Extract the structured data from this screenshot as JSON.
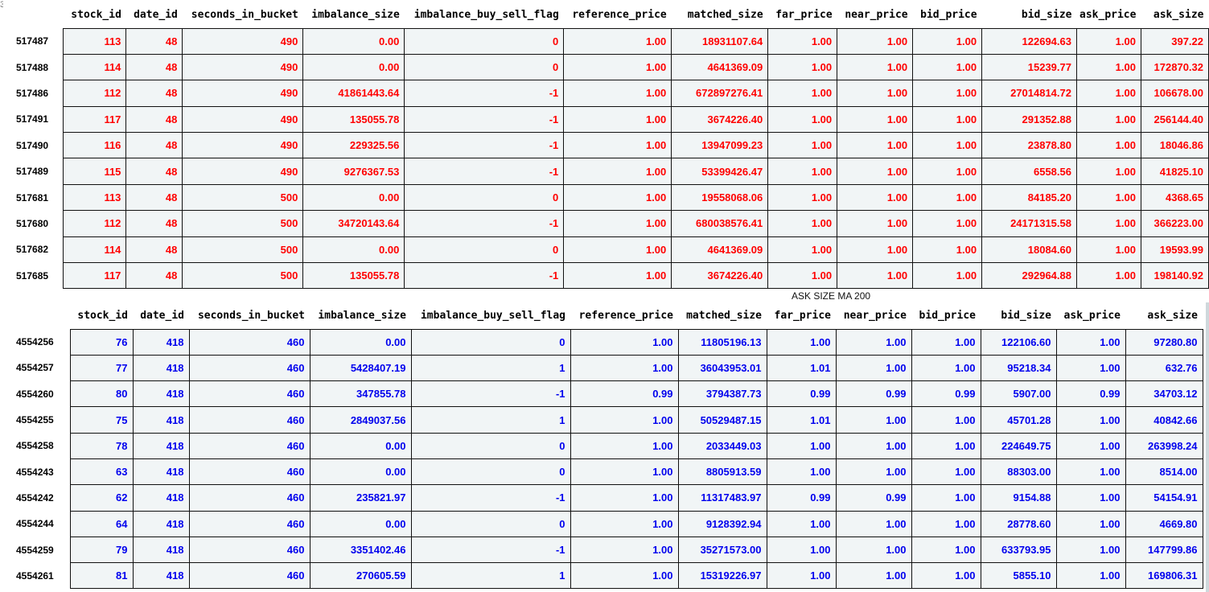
{
  "corner_mark": "3",
  "table1": {
    "columns": [
      "stock_id",
      "date_id",
      "seconds_in_bucket",
      "imbalance_size",
      "imbalance_buy_sell_flag",
      "reference_price",
      "matched_size",
      "far_price",
      "near_price",
      "bid_price",
      "bid_size",
      "ask_price",
      "ask_size"
    ],
    "rows": [
      {
        "index": "517487",
        "cells": [
          "113",
          "48",
          "490",
          "0.00",
          "0",
          "1.00",
          "18931107.64",
          "1.00",
          "1.00",
          "1.00",
          "122694.63",
          "1.00",
          "397.22"
        ]
      },
      {
        "index": "517488",
        "cells": [
          "114",
          "48",
          "490",
          "0.00",
          "0",
          "1.00",
          "4641369.09",
          "1.00",
          "1.00",
          "1.00",
          "15239.77",
          "1.00",
          "172870.32"
        ]
      },
      {
        "index": "517486",
        "cells": [
          "112",
          "48",
          "490",
          "41861443.64",
          "-1",
          "1.00",
          "672897276.41",
          "1.00",
          "1.00",
          "1.00",
          "27014814.72",
          "1.00",
          "106678.00"
        ]
      },
      {
        "index": "517491",
        "cells": [
          "117",
          "48",
          "490",
          "135055.78",
          "-1",
          "1.00",
          "3674226.40",
          "1.00",
          "1.00",
          "1.00",
          "291352.88",
          "1.00",
          "256144.40"
        ]
      },
      {
        "index": "517490",
        "cells": [
          "116",
          "48",
          "490",
          "229325.56",
          "-1",
          "1.00",
          "13947099.23",
          "1.00",
          "1.00",
          "1.00",
          "23878.80",
          "1.00",
          "18046.86"
        ]
      },
      {
        "index": "517489",
        "cells": [
          "115",
          "48",
          "490",
          "9276367.53",
          "-1",
          "1.00",
          "53399426.47",
          "1.00",
          "1.00",
          "1.00",
          "6558.56",
          "1.00",
          "41825.10"
        ]
      },
      {
        "index": "517681",
        "cells": [
          "113",
          "48",
          "500",
          "0.00",
          "0",
          "1.00",
          "19558068.06",
          "1.00",
          "1.00",
          "1.00",
          "84185.20",
          "1.00",
          "4368.65"
        ]
      },
      {
        "index": "517680",
        "cells": [
          "112",
          "48",
          "500",
          "34720143.64",
          "-1",
          "1.00",
          "680038576.41",
          "1.00",
          "1.00",
          "1.00",
          "24171315.58",
          "1.00",
          "366223.00"
        ]
      },
      {
        "index": "517682",
        "cells": [
          "114",
          "48",
          "500",
          "0.00",
          "0",
          "1.00",
          "4641369.09",
          "1.00",
          "1.00",
          "1.00",
          "18084.60",
          "1.00",
          "19593.99"
        ]
      },
      {
        "index": "517685",
        "cells": [
          "117",
          "48",
          "500",
          "135055.78",
          "-1",
          "1.00",
          "3674226.40",
          "1.00",
          "1.00",
          "1.00",
          "292964.88",
          "1.00",
          "198140.92"
        ]
      }
    ]
  },
  "caption": "ASK SIZE MA 200",
  "table2": {
    "columns": [
      "stock_id",
      "date_id",
      "seconds_in_bucket",
      "imbalance_size",
      "imbalance_buy_sell_flag",
      "reference_price",
      "matched_size",
      "far_price",
      "near_price",
      "bid_price",
      "bid_size",
      "ask_price",
      "ask_size"
    ],
    "rows": [
      {
        "index": "4554256",
        "cells": [
          "76",
          "418",
          "460",
          "0.00",
          "0",
          "1.00",
          "11805196.13",
          "1.00",
          "1.00",
          "1.00",
          "122106.60",
          "1.00",
          "97280.80"
        ]
      },
      {
        "index": "4554257",
        "cells": [
          "77",
          "418",
          "460",
          "5428407.19",
          "1",
          "1.00",
          "36043953.01",
          "1.01",
          "1.00",
          "1.00",
          "95218.34",
          "1.00",
          "632.76"
        ]
      },
      {
        "index": "4554260",
        "cells": [
          "80",
          "418",
          "460",
          "347855.78",
          "-1",
          "0.99",
          "3794387.73",
          "0.99",
          "0.99",
          "0.99",
          "5907.00",
          "0.99",
          "34703.12"
        ]
      },
      {
        "index": "4554255",
        "cells": [
          "75",
          "418",
          "460",
          "2849037.56",
          "1",
          "1.00",
          "50529487.15",
          "1.01",
          "1.00",
          "1.00",
          "45701.28",
          "1.00",
          "40842.66"
        ]
      },
      {
        "index": "4554258",
        "cells": [
          "78",
          "418",
          "460",
          "0.00",
          "0",
          "1.00",
          "2033449.03",
          "1.00",
          "1.00",
          "1.00",
          "224649.75",
          "1.00",
          "263998.24"
        ]
      },
      {
        "index": "4554243",
        "cells": [
          "63",
          "418",
          "460",
          "0.00",
          "0",
          "1.00",
          "8805913.59",
          "1.00",
          "1.00",
          "1.00",
          "88303.00",
          "1.00",
          "8514.00"
        ]
      },
      {
        "index": "4554242",
        "cells": [
          "62",
          "418",
          "460",
          "235821.97",
          "-1",
          "1.00",
          "11317483.97",
          "0.99",
          "0.99",
          "1.00",
          "9154.88",
          "1.00",
          "54154.91"
        ]
      },
      {
        "index": "4554244",
        "cells": [
          "64",
          "418",
          "460",
          "0.00",
          "0",
          "1.00",
          "9128392.94",
          "1.00",
          "1.00",
          "1.00",
          "28778.60",
          "1.00",
          "4669.80"
        ]
      },
      {
        "index": "4554259",
        "cells": [
          "79",
          "418",
          "460",
          "3351402.46",
          "-1",
          "1.00",
          "35271573.00",
          "1.00",
          "1.00",
          "1.00",
          "633793.95",
          "1.00",
          "147799.86"
        ]
      },
      {
        "index": "4554261",
        "cells": [
          "81",
          "418",
          "460",
          "270605.59",
          "1",
          "1.00",
          "15319226.97",
          "1.00",
          "1.00",
          "1.00",
          "5855.10",
          "1.00",
          "169806.31"
        ]
      }
    ]
  }
}
